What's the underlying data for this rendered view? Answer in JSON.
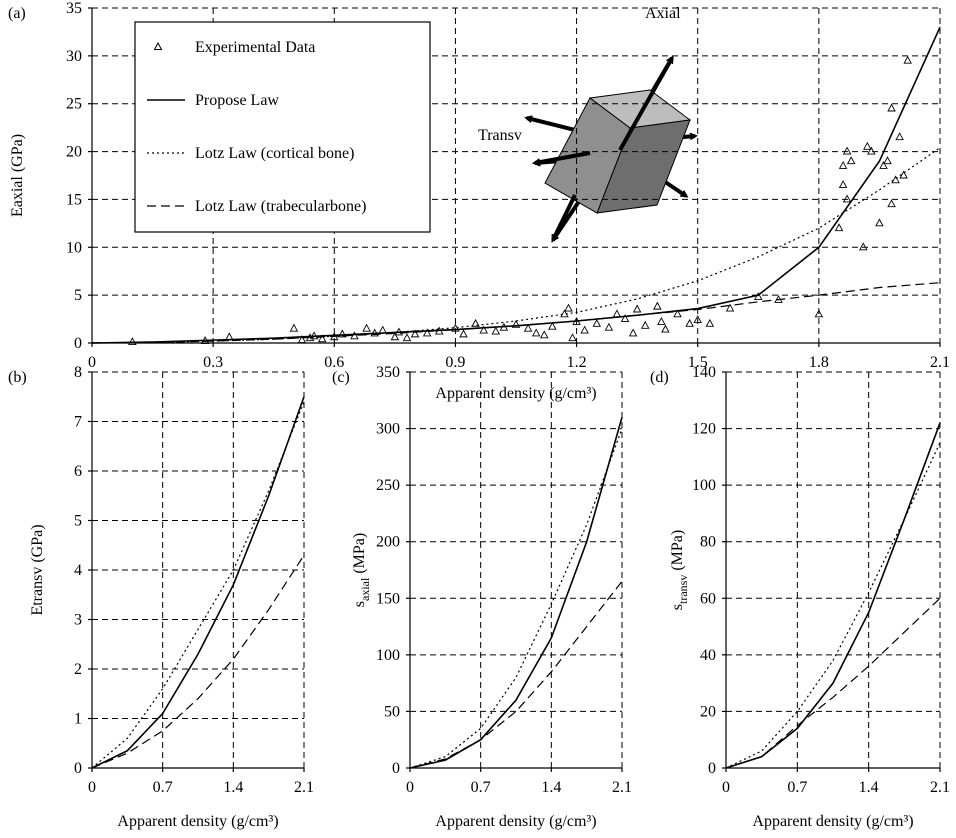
{
  "chart_data": [
    {
      "type": "line",
      "panel": "(a)",
      "xlabel": "Apparent density (g/cm³)",
      "ylabel": "Eaxial (GPa)",
      "xlim": [
        0,
        2.1
      ],
      "xticks": [
        0,
        0.3,
        0.6,
        0.9,
        1.2,
        1.5,
        1.8,
        2.1
      ],
      "ylim": [
        0,
        35
      ],
      "yticks": [
        0,
        5,
        10,
        15,
        20,
        25,
        30,
        35
      ],
      "grid": true,
      "legend": "upper left",
      "annotations": [
        "Axial",
        "Transv"
      ],
      "x": [
        0,
        0.15,
        0.3,
        0.45,
        0.6,
        0.75,
        0.9,
        1.05,
        1.2,
        1.35,
        1.5,
        1.65,
        1.8,
        1.95,
        2.1
      ],
      "series": [
        {
          "name": "Experimental Data",
          "style": "triangle",
          "color": "#000",
          "x": [
            0.1,
            0.28,
            0.34,
            0.5,
            0.52,
            0.54,
            0.55,
            0.57,
            0.6,
            0.62,
            0.65,
            0.68,
            0.7,
            0.72,
            0.75,
            0.76,
            0.78,
            0.8,
            0.83,
            0.86,
            0.9,
            0.92,
            0.95,
            0.97,
            1.0,
            1.02,
            1.05,
            1.08,
            1.1,
            1.12,
            1.14,
            1.17,
            1.18,
            1.19,
            1.2,
            1.22,
            1.25,
            1.28,
            1.3,
            1.32,
            1.34,
            1.35,
            1.37,
            1.4,
            1.41,
            1.42,
            1.45,
            1.48,
            1.5,
            1.53,
            1.58,
            1.65,
            1.7,
            1.8,
            1.85,
            1.86,
            1.86,
            1.87,
            1.87,
            1.88,
            1.91,
            1.92,
            1.93,
            1.95,
            1.96,
            1.97,
            1.98,
            1.98,
            1.99,
            2.0,
            2.01,
            2.02
          ],
          "values": [
            0.1,
            0.2,
            0.6,
            1.5,
            0.3,
            0.5,
            0.7,
            0.4,
            0.6,
            0.9,
            0.7,
            1.5,
            1.0,
            1.3,
            0.6,
            1.1,
            0.5,
            0.9,
            1.0,
            1.2,
            1.5,
            0.9,
            2.0,
            1.3,
            1.2,
            1.6,
            1.9,
            1.5,
            1.0,
            0.8,
            1.7,
            3.0,
            3.6,
            0.5,
            2.2,
            1.3,
            2.0,
            1.6,
            3.0,
            2.5,
            1.0,
            3.5,
            1.8,
            3.8,
            2.2,
            1.4,
            3.0,
            2.0,
            2.4,
            2.0,
            3.6,
            4.8,
            4.5,
            3.0,
            12,
            16.5,
            18.5,
            20,
            15,
            19,
            10,
            20.5,
            20,
            12.5,
            18.5,
            19,
            14.5,
            24.5,
            17,
            21.5,
            17.5,
            29.5
          ]
        },
        {
          "name": "Propose Law",
          "style": "solid",
          "color": "#000",
          "values": [
            0,
            0.1,
            0.3,
            0.5,
            0.8,
            1.1,
            1.4,
            1.8,
            2.3,
            2.9,
            3.6,
            5.0,
            10,
            19,
            33
          ]
        },
        {
          "name": "Lotz Law (cortical bone)",
          "style": "dotted",
          "color": "#000",
          "values": [
            0,
            0.05,
            0.2,
            0.4,
            0.7,
            1.1,
            1.6,
            2.3,
            3.2,
            4.6,
            6.5,
            9,
            12,
            16,
            20.4
          ]
        },
        {
          "name": "Lotz Law (trabecularbone)",
          "style": "dashed",
          "color": "#000",
          "values": [
            0,
            0.05,
            0.2,
            0.4,
            0.7,
            1.0,
            1.4,
            1.8,
            2.3,
            2.9,
            3.5,
            4.3,
            5.0,
            5.8,
            6.3
          ]
        }
      ]
    },
    {
      "type": "line",
      "panel": "(b)",
      "xlabel": "Apparent density (g/cm³)",
      "ylabel": "Etransv (GPa)",
      "xlim": [
        0,
        2.1
      ],
      "xticks": [
        0,
        0.7,
        1.4,
        2.1
      ],
      "ylim": [
        0,
        8
      ],
      "yticks": [
        0,
        1,
        2,
        3,
        4,
        5,
        6,
        7,
        8
      ],
      "grid": true,
      "x": [
        0,
        0.35,
        0.7,
        1.05,
        1.4,
        1.75,
        2.1
      ],
      "series": [
        {
          "style": "solid",
          "color": "#000",
          "values": [
            0,
            0.35,
            1.1,
            2.3,
            3.7,
            5.5,
            7.5
          ]
        },
        {
          "style": "dotted",
          "color": "#000",
          "values": [
            0,
            0.6,
            1.6,
            2.8,
            4.0,
            5.6,
            7.4
          ]
        },
        {
          "style": "dashed",
          "color": "#000",
          "values": [
            0,
            0.3,
            0.75,
            1.4,
            2.2,
            3.2,
            4.3
          ]
        }
      ]
    },
    {
      "type": "line",
      "panel": "(c)",
      "xlabel": "Apparent density (g/cm³)",
      "ylabel": {
        "text": "s",
        "sub": "axial",
        "unit": "(MPa)"
      },
      "xlim": [
        0,
        2.1
      ],
      "xticks": [
        0,
        0.7,
        1.4,
        2.1
      ],
      "ylim": [
        0,
        350
      ],
      "yticks": [
        0,
        50,
        100,
        150,
        200,
        250,
        300,
        350
      ],
      "grid": true,
      "x": [
        0,
        0.35,
        0.7,
        1.05,
        1.4,
        1.75,
        2.1
      ],
      "series": [
        {
          "style": "solid",
          "color": "#000",
          "values": [
            0,
            7,
            25,
            60,
            115,
            200,
            310
          ]
        },
        {
          "style": "dotted",
          "color": "#000",
          "values": [
            0,
            10,
            35,
            80,
            145,
            215,
            300
          ]
        },
        {
          "style": "dashed",
          "color": "#000",
          "values": [
            0,
            8,
            25,
            50,
            85,
            125,
            165
          ]
        }
      ]
    },
    {
      "type": "line",
      "panel": "(d)",
      "xlabel": "Apparent density (g/cm³)",
      "ylabel": {
        "text": "s",
        "sub": "transv",
        "unit": "(MPa)"
      },
      "xlim": [
        0,
        2.1
      ],
      "xticks": [
        0,
        0.7,
        1.4,
        2.1
      ],
      "ylim": [
        0,
        140
      ],
      "yticks": [
        0,
        20,
        40,
        60,
        80,
        100,
        120,
        140
      ],
      "grid": true,
      "x": [
        0,
        0.35,
        0.7,
        1.05,
        1.4,
        1.75,
        2.1
      ],
      "series": [
        {
          "style": "solid",
          "color": "#000",
          "values": [
            0,
            4,
            14,
            30,
            55,
            88,
            122
          ]
        },
        {
          "style": "dotted",
          "color": "#000",
          "values": [
            0,
            6,
            20,
            38,
            62,
            88,
            115
          ]
        },
        {
          "style": "dashed",
          "color": "#000",
          "values": [
            0,
            4,
            15,
            25,
            36,
            48,
            60
          ]
        }
      ]
    }
  ]
}
